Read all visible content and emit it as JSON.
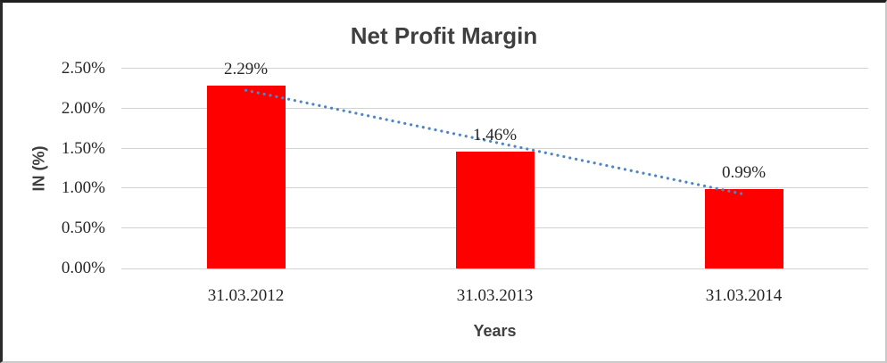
{
  "chart_data": {
    "type": "bar",
    "title": "Net Profit Margin",
    "xlabel": "Years",
    "ylabel": "IN (%)",
    "categories": [
      "31.03.2012",
      "31.03.2013",
      "31.03.2014"
    ],
    "values": [
      2.29,
      1.46,
      0.99
    ],
    "data_labels": [
      "2.29%",
      "1.46%",
      "0.99%"
    ],
    "ylim": [
      0,
      2.5
    ],
    "ytick_values": [
      0,
      0.5,
      1.0,
      1.5,
      2.0,
      2.5
    ],
    "ytick_labels": [
      "0.00%",
      "0.50%",
      "1.00%",
      "1.50%",
      "2.00%",
      "2.50%"
    ],
    "grid": true,
    "legend": "none",
    "bar_color": "#ff0000",
    "gridline_color": "#d2d2d2",
    "trendline": {
      "type": "linear",
      "style": "dotted",
      "color": "#4a86c8"
    }
  }
}
